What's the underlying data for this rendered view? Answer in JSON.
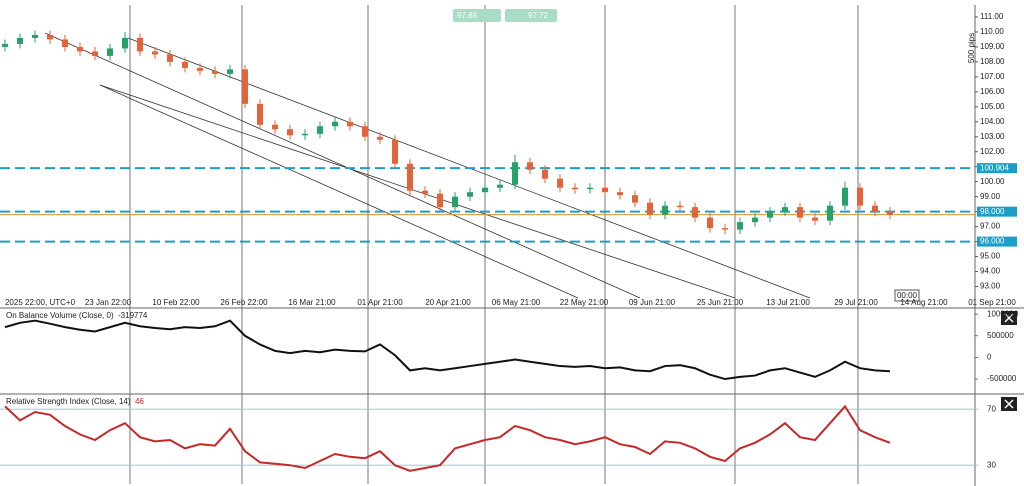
{
  "chart_data": {
    "type": "candlestick",
    "bid_label": "97.88",
    "ask_label": "97.72",
    "pips_label": "500 pips",
    "time_box": "00:00",
    "up_color": "#26a269",
    "down_color": "#e3643a",
    "open": [
      109.0,
      109.2,
      109.6,
      109.8,
      109.5,
      109.0,
      108.7,
      108.4,
      108.9,
      109.6,
      108.7,
      108.5,
      108.0,
      107.6,
      107.4,
      107.2,
      107.5,
      105.2,
      103.8,
      103.5,
      103.1,
      103.2,
      103.7,
      104.0,
      103.7,
      103.0,
      102.8,
      101.2,
      99.4,
      99.2,
      98.3,
      99.0,
      99.3,
      99.6,
      99.8,
      101.3,
      100.8,
      100.2,
      99.6,
      99.5,
      99.6,
      99.3,
      99.1,
      98.6,
      97.8,
      98.4,
      98.3,
      97.6,
      96.9,
      96.8,
      97.3,
      97.6,
      98.0,
      98.3,
      97.6,
      97.4,
      98.4,
      99.6,
      98.4,
      98.0
    ],
    "close": [
      109.2,
      109.6,
      109.8,
      109.5,
      109.0,
      108.7,
      108.4,
      108.9,
      109.6,
      108.7,
      108.5,
      108.0,
      107.6,
      107.4,
      107.2,
      107.5,
      105.2,
      103.8,
      103.5,
      103.1,
      103.2,
      103.7,
      104.0,
      103.7,
      103.0,
      102.8,
      101.2,
      99.4,
      99.2,
      98.3,
      99.0,
      99.3,
      99.6,
      99.8,
      101.3,
      100.8,
      100.2,
      99.6,
      99.5,
      99.6,
      99.3,
      99.1,
      98.6,
      97.8,
      98.4,
      98.3,
      97.6,
      96.9,
      96.8,
      97.3,
      97.6,
      98.0,
      98.3,
      97.6,
      97.4,
      98.4,
      99.6,
      98.4,
      98.0,
      97.8
    ],
    "high": [
      109.5,
      109.9,
      110.1,
      110.1,
      109.8,
      109.3,
      109.0,
      109.2,
      110.0,
      109.9,
      109.0,
      108.8,
      108.3,
      107.9,
      107.7,
      107.8,
      107.8,
      105.5,
      104.1,
      103.8,
      103.5,
      104.0,
      104.3,
      104.3,
      104.0,
      103.3,
      103.1,
      101.5,
      99.7,
      99.5,
      99.3,
      99.6,
      99.9,
      100.1,
      101.8,
      101.6,
      101.1,
      100.5,
      99.9,
      99.9,
      99.9,
      99.6,
      99.4,
      98.9,
      98.7,
      98.7,
      98.6,
      97.9,
      97.2,
      97.6,
      97.9,
      98.3,
      98.6,
      98.6,
      97.9,
      98.7,
      100.0,
      99.9,
      98.7,
      98.3
    ],
    "low": [
      108.7,
      108.9,
      109.3,
      109.2,
      108.7,
      108.4,
      108.1,
      108.1,
      108.6,
      108.4,
      108.2,
      107.7,
      107.3,
      107.1,
      106.9,
      106.9,
      104.9,
      103.5,
      103.2,
      102.8,
      102.8,
      102.9,
      103.4,
      103.4,
      102.7,
      102.5,
      100.9,
      99.1,
      98.9,
      98.0,
      98.0,
      98.7,
      99.0,
      99.3,
      99.5,
      100.5,
      99.9,
      99.3,
      99.2,
      99.2,
      99.0,
      98.8,
      98.3,
      97.5,
      97.5,
      98.0,
      97.3,
      96.6,
      96.5,
      96.5,
      97.0,
      97.3,
      97.7,
      97.3,
      97.1,
      97.1,
      98.1,
      98.1,
      97.7,
      97.5
    ],
    "ylim": [
      92.3,
      111.8
    ],
    "yticks": [
      {
        "value": 93,
        "label": "93.00"
      },
      {
        "value": 94,
        "label": "94.00"
      },
      {
        "value": 95,
        "label": "95.00"
      },
      {
        "value": 96,
        "label": "96.00"
      },
      {
        "value": 97,
        "label": "97.00"
      },
      {
        "value": 98,
        "label": "98.00"
      },
      {
        "value": 99,
        "label": "99.00"
      },
      {
        "value": 100,
        "label": "100.00"
      },
      {
        "value": 101,
        "label": "101.00"
      },
      {
        "value": 102,
        "label": "102.00"
      },
      {
        "value": 103,
        "label": "103.00"
      },
      {
        "value": 104,
        "label": "104.00"
      },
      {
        "value": 105,
        "label": "105.00"
      },
      {
        "value": 106,
        "label": "106.00"
      },
      {
        "value": 107,
        "label": "107.00"
      },
      {
        "value": 108,
        "label": "108.00"
      },
      {
        "value": 109,
        "label": "109.00"
      },
      {
        "value": 110,
        "label": "110.00"
      },
      {
        "value": 111,
        "label": "111.00"
      }
    ],
    "levels": [
      {
        "value": 100.904,
        "label": "100.904"
      },
      {
        "value": 98.0,
        "label": "98.000"
      },
      {
        "value": 96.0,
        "label": "96.000"
      }
    ],
    "level_color": "#1aa0c8",
    "last_price": 97.8,
    "last_color": "#e0902a",
    "time_labels": [
      "2025 22:00, UTC+0",
      "23 Jan 22:00",
      "10 Feb 22:00",
      "26 Feb 22:00",
      "16 Mar 21:00",
      "01 Apr 21:00",
      "20 Apr 21:00",
      "06 May 21:00",
      "22 May 21:00",
      "09 Jun 21:00",
      "25 Jun 21:00",
      "13 Jul 21:00",
      "29 Jul 21:00",
      "14 Aug 21:00",
      "01 Sep 21:00"
    ],
    "obv": {
      "title": "On Balance Volume (Close, 0)",
      "last_label": "-319774",
      "color": "#111",
      "values": [
        700000,
        800000,
        850000,
        780000,
        700000,
        640000,
        600000,
        700000,
        800000,
        720000,
        680000,
        650000,
        700000,
        680000,
        720000,
        850000,
        500000,
        300000,
        150000,
        100000,
        150000,
        120000,
        180000,
        150000,
        140000,
        300000,
        50000,
        -300000,
        -250000,
        -300000,
        -250000,
        -200000,
        -150000,
        -100000,
        -50000,
        -100000,
        -150000,
        -200000,
        -220000,
        -200000,
        -250000,
        -230000,
        -300000,
        -320000,
        -200000,
        -180000,
        -250000,
        -400000,
        -500000,
        -450000,
        -420000,
        -300000,
        -250000,
        -350000,
        -450000,
        -300000,
        -100000,
        -250000,
        -300000,
        -319774
      ],
      "ylim": [
        -800000,
        1050000
      ],
      "yticks": [
        1000000,
        500000,
        0,
        -500000
      ]
    },
    "rsi": {
      "title": "Relative Strength Index (Close, 14)",
      "last_label": "46",
      "color": "#c62828",
      "values": [
        72,
        62,
        68,
        66,
        58,
        52,
        48,
        55,
        60,
        50,
        47,
        48,
        42,
        45,
        44,
        56,
        40,
        32,
        31,
        30,
        28,
        33,
        38,
        36,
        35,
        40,
        30,
        26,
        28,
        30,
        42,
        45,
        48,
        50,
        58,
        55,
        50,
        48,
        45,
        47,
        50,
        45,
        43,
        38,
        47,
        46,
        42,
        36,
        33,
        42,
        46,
        52,
        60,
        50,
        48,
        60,
        72,
        55,
        50,
        46
      ],
      "ylim": [
        18,
        78
      ],
      "yticks": [
        70,
        30
      ]
    }
  }
}
